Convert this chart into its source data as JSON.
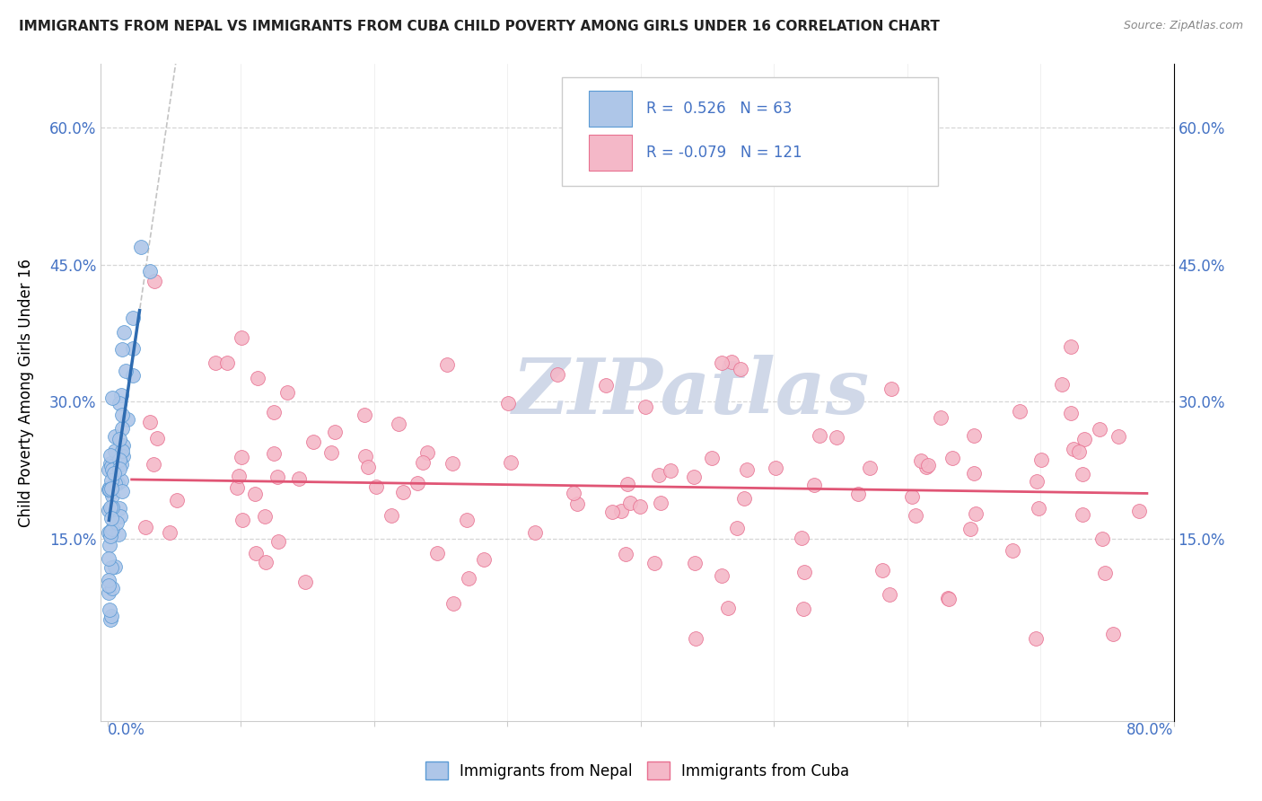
{
  "title": "IMMIGRANTS FROM NEPAL VS IMMIGRANTS FROM CUBA CHILD POVERTY AMONG GIRLS UNDER 16 CORRELATION CHART",
  "source": "Source: ZipAtlas.com",
  "ylabel": "Child Poverty Among Girls Under 16",
  "yticks": [
    0.0,
    0.15,
    0.3,
    0.45,
    0.6
  ],
  "ytick_labels_left": [
    "",
    "15.0%",
    "30.0%",
    "45.0%",
    "60.0%"
  ],
  "ytick_labels_right": [
    "",
    "15.0%",
    "30.0%",
    "45.0%",
    "60.0%"
  ],
  "xlim": [
    -0.005,
    0.8
  ],
  "ylim": [
    -0.05,
    0.67
  ],
  "nepal_R": "0.526",
  "nepal_N": "63",
  "cuba_R": "-0.079",
  "cuba_N": "121",
  "nepal_color": "#aec6e8",
  "nepal_edge_color": "#5b9bd5",
  "nepal_line_color": "#2e6bb0",
  "cuba_color": "#f4b8c8",
  "cuba_edge_color": "#e87090",
  "cuba_line_color": "#e05575",
  "watermark_color": "#d0d8e8",
  "grid_color": "#cccccc",
  "tick_color": "#4472c4",
  "title_color": "#222222",
  "source_color": "#888888"
}
